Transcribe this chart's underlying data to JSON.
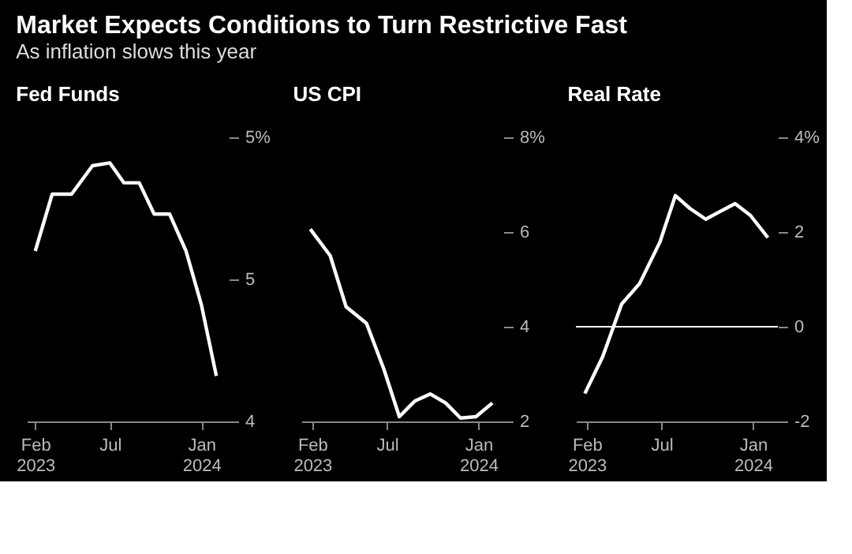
{
  "chart_data": [
    {
      "type": "line",
      "title": "Fed Funds",
      "x": [
        "2023-02-01",
        "2023-03-07",
        "2023-04-15",
        "2023-05-27",
        "2023-07-01",
        "2023-07-29",
        "2023-08-29",
        "2023-09-28",
        "2023-10-29",
        "2023-12-01",
        "2024-01-01",
        "2024-01-31"
      ],
      "series": [
        {
          "color": "#ffffff",
          "values": [
            4.6,
            4.8,
            4.8,
            4.9,
            4.91,
            4.84,
            4.84,
            4.73,
            4.73,
            4.6,
            4.41,
            4.16
          ]
        }
      ],
      "xlim": [
        "2023-01-15",
        "2024-02-25"
      ],
      "xticks": [
        {
          "value": "2023-02-01",
          "label": "Feb 2023"
        },
        {
          "value": "2023-07-01",
          "label": "Jul"
        },
        {
          "value": "2024-01-01",
          "label": "Jan 2024"
        }
      ],
      "ylim": [
        4,
        5
      ],
      "yticks": [
        {
          "value": 4,
          "label": "4"
        },
        {
          "value": 4.5,
          "label": "5"
        },
        {
          "value": 5,
          "label": "5%"
        }
      ]
    },
    {
      "type": "line",
      "title": "US CPI",
      "x": [
        "2023-01-28",
        "2023-03-09",
        "2023-04-10",
        "2023-05-21",
        "2023-06-25",
        "2023-07-26",
        "2023-08-26",
        "2023-09-26",
        "2023-10-27",
        "2023-11-26",
        "2023-12-27",
        "2024-01-29"
      ],
      "series": [
        {
          "color": "#ffffff",
          "values": [
            6.06,
            5.5,
            4.42,
            4.07,
            3.1,
            2.1,
            2.43,
            2.58,
            2.39,
            2.07,
            2.1,
            2.39
          ]
        }
      ],
      "xlim": [
        "2023-01-10",
        "2024-02-20"
      ],
      "xticks": [
        {
          "value": "2023-02-01",
          "label": "Feb 2023"
        },
        {
          "value": "2023-07-01",
          "label": "Jul"
        },
        {
          "value": "2024-01-01",
          "label": "Jan 2024"
        }
      ],
      "ylim": [
        2,
        8
      ],
      "yticks": [
        {
          "value": 2,
          "label": "2"
        },
        {
          "value": 4,
          "label": "4"
        },
        {
          "value": 6,
          "label": "6"
        },
        {
          "value": 8,
          "label": "8%"
        }
      ]
    },
    {
      "type": "line",
      "title": "Real Rate",
      "x": [
        "2023-01-28",
        "2023-03-05",
        "2023-04-12",
        "2023-05-18",
        "2023-06-28",
        "2023-07-29",
        "2023-08-27",
        "2023-09-28",
        "2023-10-28",
        "2023-11-26",
        "2023-12-27",
        "2024-01-31"
      ],
      "series": [
        {
          "color": "#ffffff",
          "values": [
            -1.41,
            -0.63,
            0.48,
            0.91,
            1.79,
            2.77,
            2.5,
            2.27,
            2.44,
            2.6,
            2.35,
            1.88
          ]
        }
      ],
      "xlim": [
        "2023-01-10",
        "2024-02-20"
      ],
      "xticks": [
        {
          "value": "2023-02-01",
          "label": "Feb 2023"
        },
        {
          "value": "2023-07-01",
          "label": "Jul"
        },
        {
          "value": "2024-01-01",
          "label": "Jan 2024"
        }
      ],
      "ylim": [
        -2,
        4
      ],
      "yticks": [
        {
          "value": -2,
          "label": "-2"
        },
        {
          "value": 0,
          "label": "0"
        },
        {
          "value": 2,
          "label": "2"
        },
        {
          "value": 4,
          "label": "4%"
        }
      ],
      "ref_lines": [
        {
          "axis": "y",
          "value": 0,
          "color": "#ffffff"
        }
      ]
    },
    {
      "type": "other",
      "title": "Market Expects Conditions to Turn Restrictive Fast",
      "subtitle": "As inflation slows this year"
    }
  ]
}
